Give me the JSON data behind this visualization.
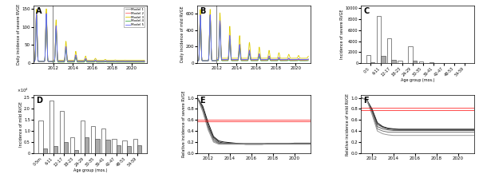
{
  "fig_width": 6.0,
  "fig_height": 2.18,
  "dpi": 100,
  "panel_labels": [
    "A",
    "B",
    "C",
    "D",
    "E",
    "F"
  ],
  "vline_x": 2011.95,
  "model_colors": [
    "#808080",
    "#ff6666",
    "#ddcc00",
    "#44aa44",
    "#6666ff"
  ],
  "model_names": [
    "Model 1",
    "Model 2",
    "Model 3",
    "Model 4",
    "Model 5"
  ],
  "age_groups_C": [
    "0-5",
    "6-11",
    "12-17",
    "18-23",
    "24-29",
    "30-35",
    "36-41",
    "42-47",
    "48-53",
    "54-59"
  ],
  "age_groups_D": [
    "0-5m",
    "6-11",
    "12-17",
    "18-23",
    "24-29",
    "30-35",
    "36-41",
    "42-47",
    "48-53",
    "54-59"
  ],
  "C_white_vals": [
    1500,
    8500,
    4500,
    500,
    3000,
    300,
    200,
    100,
    100,
    80
  ],
  "C_gray_vals": [
    200,
    1400,
    600,
    100,
    400,
    80,
    60,
    30,
    30,
    20
  ],
  "D_white_vals": [
    14500,
    23500,
    19000,
    7000,
    14500,
    12000,
    11000,
    6500,
    5500,
    6500
  ],
  "D_gray_vals": [
    2000,
    3000,
    5000,
    1500,
    7000,
    6500,
    6000,
    3500,
    3000,
    3500
  ],
  "red_lines_E": [
    0.57,
    0.6
  ],
  "red_lines_F": [
    0.78,
    0.82
  ],
  "E_model_lines": [
    [
      1.0,
      0.85,
      0.55,
      0.3,
      0.22,
      0.2,
      0.19,
      0.18,
      0.17,
      0.16,
      0.16,
      0.16,
      0.16,
      0.17,
      0.17,
      0.17,
      0.17,
      0.17,
      0.18,
      0.18,
      0.18,
      0.18
    ],
    [
      1.0,
      0.82,
      0.5,
      0.28,
      0.2,
      0.18,
      0.18,
      0.17,
      0.17,
      0.17,
      0.17,
      0.17,
      0.17,
      0.17,
      0.17,
      0.17,
      0.17,
      0.17,
      0.17,
      0.17,
      0.17,
      0.17
    ],
    [
      1.0,
      0.8,
      0.48,
      0.25,
      0.18,
      0.17,
      0.17,
      0.17,
      0.17,
      0.17,
      0.17,
      0.17,
      0.17,
      0.17,
      0.17,
      0.17,
      0.17,
      0.17,
      0.17,
      0.17,
      0.17,
      0.17
    ],
    [
      1.0,
      0.78,
      0.45,
      0.22,
      0.17,
      0.17,
      0.17,
      0.17,
      0.17,
      0.17,
      0.17,
      0.17,
      0.17,
      0.17,
      0.17,
      0.17,
      0.17,
      0.17,
      0.17,
      0.17,
      0.17,
      0.17
    ],
    [
      1.0,
      0.75,
      0.42,
      0.2,
      0.16,
      0.16,
      0.16,
      0.16,
      0.16,
      0.16,
      0.16,
      0.16,
      0.16,
      0.16,
      0.16,
      0.16,
      0.16,
      0.16,
      0.16,
      0.16,
      0.16,
      0.16
    ]
  ],
  "F_model_lines": [
    [
      1.0,
      0.97,
      0.8,
      0.55,
      0.48,
      0.45,
      0.44,
      0.43,
      0.43,
      0.43,
      0.43,
      0.43,
      0.43,
      0.43,
      0.43,
      0.43,
      0.43,
      0.43,
      0.43,
      0.43,
      0.43,
      0.43
    ],
    [
      1.0,
      0.97,
      0.78,
      0.52,
      0.47,
      0.44,
      0.43,
      0.43,
      0.43,
      0.43,
      0.43,
      0.43,
      0.43,
      0.43,
      0.43,
      0.43,
      0.43,
      0.43,
      0.43,
      0.43,
      0.43,
      0.43
    ],
    [
      1.0,
      0.97,
      0.75,
      0.48,
      0.44,
      0.42,
      0.41,
      0.41,
      0.41,
      0.41,
      0.41,
      0.41,
      0.41,
      0.41,
      0.41,
      0.41,
      0.41,
      0.41,
      0.41,
      0.41,
      0.41,
      0.41
    ],
    [
      1.0,
      0.97,
      0.73,
      0.44,
      0.4,
      0.38,
      0.38,
      0.38,
      0.38,
      0.38,
      0.38,
      0.38,
      0.38,
      0.38,
      0.38,
      0.38,
      0.38,
      0.38,
      0.38,
      0.38,
      0.38,
      0.38
    ],
    [
      1.0,
      0.97,
      0.7,
      0.4,
      0.35,
      0.33,
      0.32,
      0.32,
      0.32,
      0.32,
      0.32,
      0.32,
      0.32,
      0.32,
      0.32,
      0.32,
      0.32,
      0.32,
      0.32,
      0.32,
      0.32,
      0.32
    ]
  ],
  "EF_years": [
    2011,
    2011.5,
    2012,
    2012.5,
    2013,
    2013.5,
    2014,
    2014.5,
    2015,
    2015.5,
    2016,
    2016.5,
    2017,
    2017.5,
    2018,
    2018.5,
    2019,
    2019.5,
    2020,
    2020.5,
    2021,
    2021.5
  ],
  "gray_bar_color": "#aaaaaa",
  "white_bar_color": "#ffffff",
  "bar_edge_color": "#555555",
  "background_color": "#ffffff"
}
